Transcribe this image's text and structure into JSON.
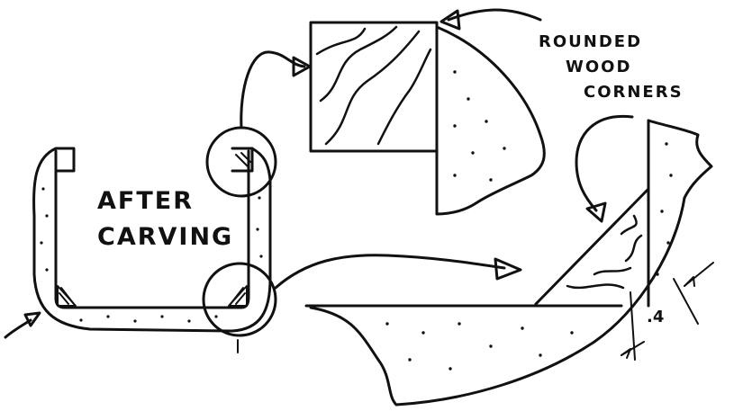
{
  "labels": {
    "after_carving_line1": "AFTER",
    "after_carving_line2": "CARVING",
    "rounded_line1": "ROUNDED",
    "rounded_line2": "WOOD",
    "rounded_line3": "CORNERS",
    "dimension": ".4"
  }
}
